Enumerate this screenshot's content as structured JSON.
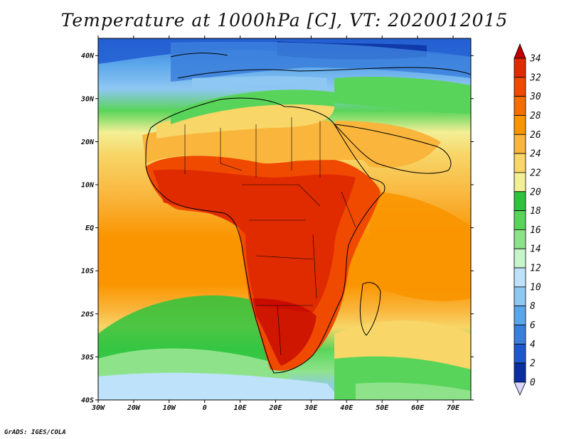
{
  "title": "Temperature at 1000hPa [C], VT: 2020012015",
  "credit": "GrADS: IGES/COLA",
  "map": {
    "lat_ticks": [
      "40N",
      "30N",
      "20N",
      "10N",
      "EQ",
      "10S",
      "20S",
      "30S",
      "40S"
    ],
    "lon_ticks": [
      "30W",
      "20W",
      "10W",
      "0",
      "10E",
      "20E",
      "30E",
      "40E",
      "50E",
      "60E",
      "70E"
    ],
    "extent": {
      "lon": [
        -30,
        75
      ],
      "lat": [
        -40,
        44
      ]
    }
  },
  "colorbar": {
    "labels": [
      "34",
      "32",
      "30",
      "28",
      "26",
      "24",
      "22",
      "20",
      "18",
      "16",
      "14",
      "12",
      "10",
      "8",
      "6",
      "4",
      "2",
      "0"
    ],
    "colors": [
      "#c00000",
      "#e02b00",
      "#f04a00",
      "#f56e00",
      "#fa9500",
      "#f9b53c",
      "#f8d668",
      "#f3ef96",
      "#2ec33e",
      "#59d45a",
      "#8ee38a",
      "#c6f5ca",
      "#bfe2fb",
      "#8fc7f3",
      "#5aa6ea",
      "#3b7fdc",
      "#1e58cf",
      "#0b2fa0",
      "#090f70"
    ]
  }
}
